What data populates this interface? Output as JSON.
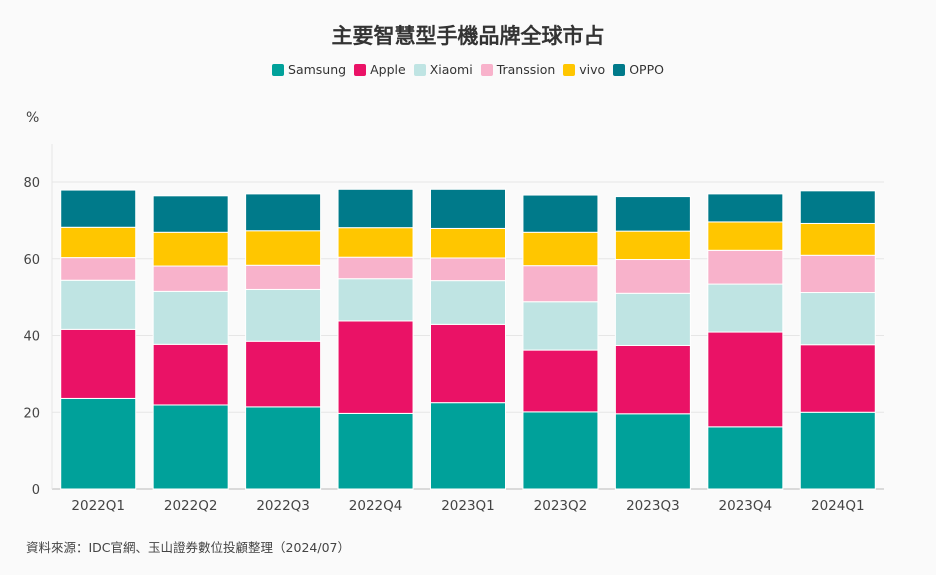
{
  "chart_data": {
    "type": "bar",
    "stacked": true,
    "title": "主要智慧型手機品牌全球市占",
    "ylabel": "%",
    "ylim": [
      0,
      80
    ],
    "yticks": [
      0,
      20,
      40,
      60,
      80
    ],
    "grid": true,
    "legend_position": "top-center",
    "categories": [
      "2022Q1",
      "2022Q2",
      "2022Q3",
      "2022Q4",
      "2023Q1",
      "2023Q2",
      "2023Q3",
      "2023Q4",
      "2024Q1"
    ],
    "series": [
      {
        "name": "Samsung",
        "color": "#00a19a",
        "values": [
          23.6,
          21.9,
          21.4,
          19.7,
          22.5,
          20.1,
          19.6,
          16.2,
          20.0
        ]
      },
      {
        "name": "Apple",
        "color": "#ea1266",
        "values": [
          18.0,
          15.8,
          17.1,
          24.1,
          20.4,
          16.1,
          17.8,
          24.7,
          17.6
        ]
      },
      {
        "name": "Xiaomi",
        "color": "#bfe4e3",
        "values": [
          12.8,
          13.8,
          13.5,
          11.0,
          11.4,
          12.6,
          13.6,
          12.5,
          13.6
        ]
      },
      {
        "name": "Transsion",
        "color": "#f8b2cb",
        "values": [
          5.9,
          6.6,
          6.3,
          5.6,
          5.9,
          9.4,
          8.8,
          8.8,
          9.7
        ]
      },
      {
        "name": "vivo",
        "color": "#ffc600",
        "values": [
          7.9,
          8.8,
          9.0,
          7.7,
          7.7,
          8.7,
          7.4,
          7.4,
          8.3
        ]
      },
      {
        "name": "OPPO",
        "color": "#007a8a",
        "values": [
          9.7,
          9.5,
          9.6,
          10.0,
          10.2,
          9.7,
          9.0,
          7.3,
          8.5
        ]
      }
    ]
  },
  "source_note": "資料來源：IDC官網、玉山證券數位投顧整理（2024/07）"
}
